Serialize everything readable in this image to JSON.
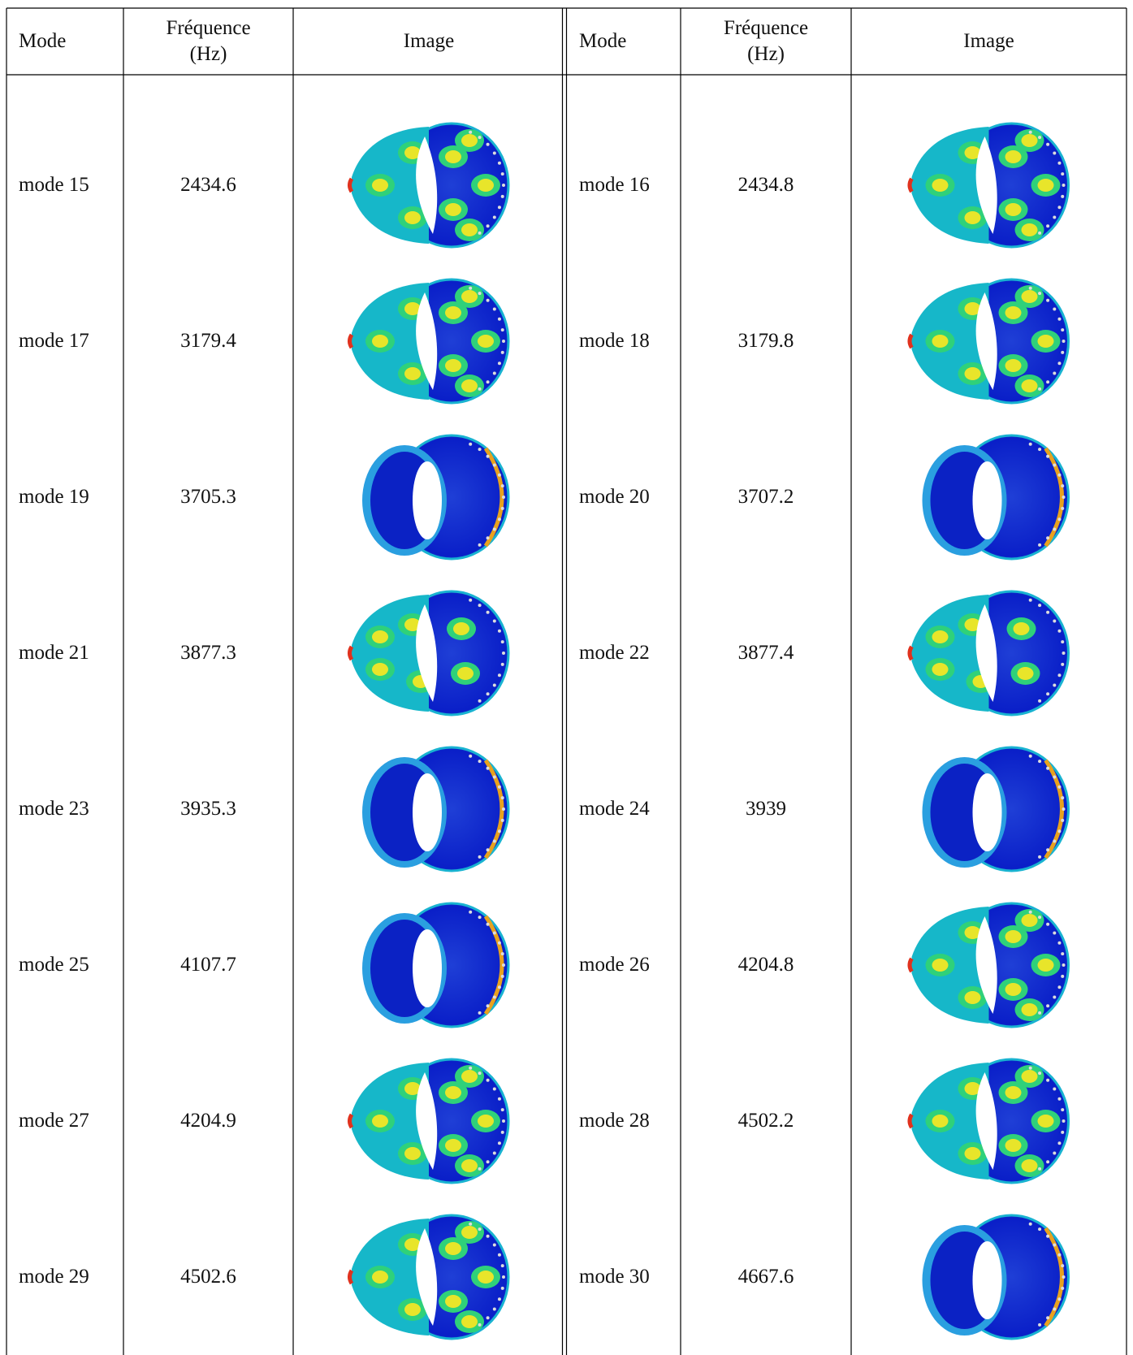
{
  "table": {
    "header": [
      "Mode",
      "Fréquence (Hz)",
      "Image",
      "Mode",
      "Fréquence (Hz)",
      "Image"
    ],
    "rows": [
      [
        "mode 15",
        "2434.6",
        "mode 16",
        "2434.8"
      ],
      [
        "mode 17",
        "3179.4",
        "mode 18",
        "3179.8"
      ],
      [
        "mode 19",
        "3705.3",
        "mode 20",
        "3707.2"
      ],
      [
        "mode 21",
        "3877.3",
        "mode 22",
        "3877.4"
      ],
      [
        "mode 23",
        "3935.3",
        "mode 24",
        "3939"
      ],
      [
        "mode 25",
        "4107.7",
        "mode 26",
        "4204.8"
      ],
      [
        "mode 27",
        "4204.9",
        "mode 28",
        "4502.2"
      ],
      [
        "mode 29",
        "4502.6",
        "mode 30",
        "4667.6"
      ]
    ]
  }
}
